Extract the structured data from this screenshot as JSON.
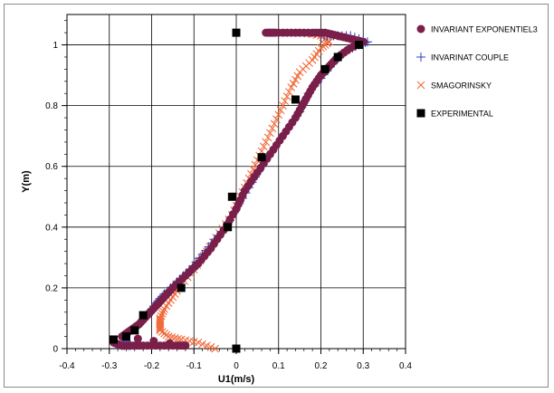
{
  "chart_data": {
    "type": "scatter",
    "title": "",
    "xlabel": "U1(m/s)",
    "ylabel": "Y(m)",
    "xlim": [
      -0.4,
      0.4
    ],
    "ylim": [
      0,
      1.1
    ],
    "x_ticks": [
      "-0.4",
      "-0.3",
      "-0.2",
      "-0.1",
      "0",
      "0.1",
      "0.2",
      "0.3",
      "0.4"
    ],
    "y_ticks": [
      "0",
      "0.2",
      "0.4",
      "0.6",
      "0.8",
      "1"
    ],
    "grid": true,
    "legend_position": "right",
    "series": [
      {
        "name": "INVARIANT EXPONENTIEL3",
        "marker": "circle",
        "color": "#7a1f4a",
        "points": [
          [
            -0.29,
            0.02
          ],
          [
            -0.27,
            0.01
          ],
          [
            -0.25,
            0.01
          ],
          [
            -0.22,
            0.01
          ],
          [
            -0.18,
            0.01
          ],
          [
            -0.14,
            0.01
          ],
          [
            -0.12,
            0.01
          ],
          [
            -0.27,
            0.04
          ],
          [
            -0.25,
            0.06
          ],
          [
            -0.23,
            0.08
          ],
          [
            -0.21,
            0.11
          ],
          [
            -0.19,
            0.14
          ],
          [
            -0.17,
            0.17
          ],
          [
            -0.15,
            0.2
          ],
          [
            -0.12,
            0.24
          ],
          [
            -0.09,
            0.28
          ],
          [
            -0.06,
            0.33
          ],
          [
            -0.03,
            0.39
          ],
          [
            0.0,
            0.46
          ],
          [
            0.02,
            0.52
          ],
          [
            0.05,
            0.58
          ],
          [
            0.08,
            0.64
          ],
          [
            0.11,
            0.7
          ],
          [
            0.14,
            0.76
          ],
          [
            0.16,
            0.81
          ],
          [
            0.18,
            0.86
          ],
          [
            0.2,
            0.9
          ],
          [
            0.22,
            0.93
          ],
          [
            0.24,
            0.96
          ],
          [
            0.27,
            0.99
          ],
          [
            0.3,
            1.01
          ],
          [
            0.27,
            1.02
          ],
          [
            0.24,
            1.03
          ],
          [
            0.21,
            1.04
          ],
          [
            0.18,
            1.04
          ],
          [
            0.14,
            1.04
          ],
          [
            0.1,
            1.04
          ],
          [
            0.07,
            1.04
          ],
          [
            0.09,
            1.04
          ]
        ]
      },
      {
        "name": "INVARINAT COUPLE",
        "marker": "plus",
        "color": "#2a3fc0",
        "points": [
          [
            -0.29,
            0.02
          ],
          [
            -0.27,
            0.01
          ],
          [
            -0.25,
            0.01
          ],
          [
            -0.27,
            0.04
          ],
          [
            -0.25,
            0.06
          ],
          [
            -0.23,
            0.08
          ],
          [
            -0.21,
            0.11
          ],
          [
            -0.19,
            0.15
          ],
          [
            -0.17,
            0.18
          ],
          [
            -0.14,
            0.22
          ],
          [
            -0.11,
            0.26
          ],
          [
            -0.08,
            0.31
          ],
          [
            -0.05,
            0.36
          ],
          [
            -0.02,
            0.41
          ],
          [
            0.0,
            0.46
          ],
          [
            0.03,
            0.53
          ],
          [
            0.06,
            0.6
          ],
          [
            0.09,
            0.66
          ],
          [
            0.12,
            0.72
          ],
          [
            0.15,
            0.78
          ],
          [
            0.17,
            0.84
          ],
          [
            0.2,
            0.89
          ],
          [
            0.23,
            0.94
          ],
          [
            0.26,
            0.98
          ],
          [
            0.29,
            1.0
          ],
          [
            0.31,
            1.01
          ],
          [
            0.27,
            1.03
          ],
          [
            0.23,
            1.03
          ],
          [
            0.2,
            1.03
          ]
        ]
      },
      {
        "name": "SMAGORINSKY",
        "marker": "x",
        "color": "#f06a3a",
        "points": [
          [
            -0.05,
            0.0
          ],
          [
            -0.09,
            0.02
          ],
          [
            -0.13,
            0.03
          ],
          [
            -0.16,
            0.04
          ],
          [
            -0.18,
            0.06
          ],
          [
            -0.18,
            0.08
          ],
          [
            -0.18,
            0.1
          ],
          [
            -0.17,
            0.13
          ],
          [
            -0.15,
            0.17
          ],
          [
            -0.13,
            0.21
          ],
          [
            -0.1,
            0.26
          ],
          [
            -0.07,
            0.32
          ],
          [
            -0.04,
            0.38
          ],
          [
            -0.01,
            0.44
          ],
          [
            0.01,
            0.5
          ],
          [
            0.03,
            0.56
          ],
          [
            0.05,
            0.62
          ],
          [
            0.07,
            0.68
          ],
          [
            0.09,
            0.74
          ],
          [
            0.11,
            0.8
          ],
          [
            0.13,
            0.86
          ],
          [
            0.15,
            0.91
          ],
          [
            0.18,
            0.95
          ],
          [
            0.2,
            0.99
          ],
          [
            0.22,
            1.01
          ],
          [
            0.2,
            1.03
          ],
          [
            0.16,
            1.04
          ],
          [
            0.13,
            1.04
          ],
          [
            0.1,
            1.04
          ]
        ]
      },
      {
        "name": "EXPERIMENTAL",
        "marker": "square",
        "color": "#000000",
        "points": [
          [
            0.0,
            1.04
          ],
          [
            0.29,
            1.0
          ],
          [
            0.24,
            0.96
          ],
          [
            0.21,
            0.92
          ],
          [
            0.14,
            0.82
          ],
          [
            0.06,
            0.63
          ],
          [
            -0.01,
            0.5
          ],
          [
            -0.02,
            0.4
          ],
          [
            -0.13,
            0.2
          ],
          [
            -0.22,
            0.11
          ],
          [
            -0.24,
            0.06
          ],
          [
            -0.26,
            0.04
          ],
          [
            -0.29,
            0.03
          ],
          [
            0.0,
            0.0
          ]
        ]
      }
    ]
  }
}
